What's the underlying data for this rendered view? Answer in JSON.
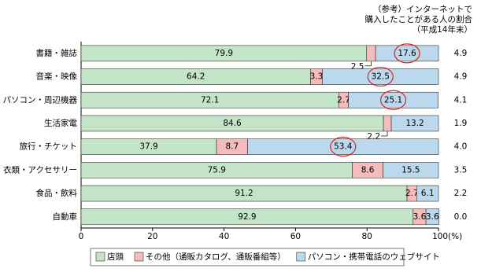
{
  "chart_data": {
    "type": "stacked-bar-horizontal",
    "categories": [
      "書籍・雑誌",
      "音楽・映像",
      "パソコン・周辺機器",
      "生活家電",
      "旅行・チケット",
      "衣類・アクセサリー",
      "食品・飲料",
      "自動車"
    ],
    "series": [
      {
        "name": "店頭",
        "color": "#c4e4c8",
        "values": [
          79.9,
          64.2,
          72.1,
          84.6,
          37.9,
          75.9,
          91.2,
          92.9
        ]
      },
      {
        "name": "その他（通販カタログ、通販番組等）",
        "color": "#f4bcbc",
        "values": [
          2.5,
          3.3,
          2.7,
          2.2,
          8.7,
          8.6,
          2.7,
          3.6
        ]
      },
      {
        "name": "パソコン・携帯電話のウェブサイト",
        "color": "#bcd8ec",
        "values": [
          17.6,
          32.5,
          25.1,
          13.2,
          53.4,
          15.5,
          6.1,
          3.6
        ],
        "circled": [
          true,
          true,
          true,
          false,
          true,
          false,
          false,
          false
        ]
      }
    ],
    "xlim": [
      0,
      100
    ],
    "xticks": [
      0,
      20,
      40,
      60,
      80,
      {
        "value": 100,
        "label": "100(%)"
      }
    ],
    "reference": {
      "title_lines": [
        "（参考）インターネットで",
        "購入したことがある人の割合",
        "（平成14年末）"
      ],
      "values": [
        4.9,
        4.9,
        4.1,
        1.9,
        4.0,
        3.5,
        2.2,
        0.0
      ],
      "value_labels": [
        "4.9",
        "4.9",
        "4.1",
        "1.9",
        "4.0",
        "3.5",
        "2.2",
        "0.0"
      ]
    }
  }
}
